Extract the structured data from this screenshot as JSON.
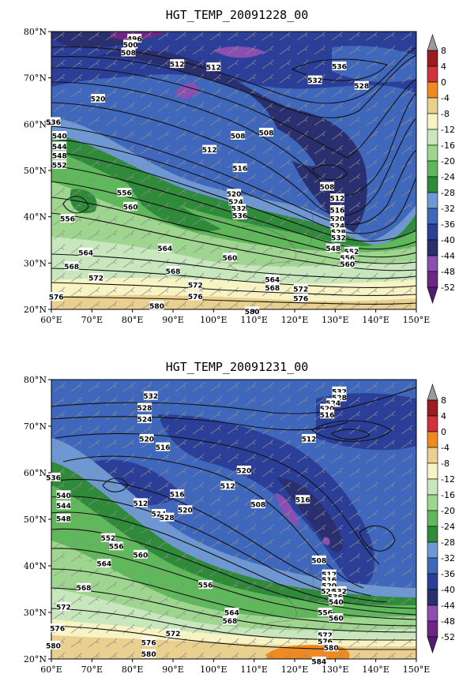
{
  "maps": [
    {
      "title": "HGT_TEMP_20091228_00",
      "contour_labels": [
        {
          "v": "496",
          "lon": 80.5,
          "lat": 78.5
        },
        {
          "v": "500",
          "lon": 79.5,
          "lat": 77.2
        },
        {
          "v": "508",
          "lon": 79,
          "lat": 75.5
        },
        {
          "v": "512",
          "lon": 91,
          "lat": 73
        },
        {
          "v": "512",
          "lon": 100,
          "lat": 72.3
        },
        {
          "v": "520",
          "lon": 71.5,
          "lat": 65.5
        },
        {
          "v": "536",
          "lon": 131,
          "lat": 72.5
        },
        {
          "v": "532",
          "lon": 125,
          "lat": 69.5
        },
        {
          "v": "528",
          "lon": 136.5,
          "lat": 68.3
        },
        {
          "v": "536",
          "lon": 60.5,
          "lat": 60.5
        },
        {
          "v": "540",
          "lon": 62,
          "lat": 57.5
        },
        {
          "v": "544",
          "lon": 62,
          "lat": 55.2
        },
        {
          "v": "548",
          "lon": 62,
          "lat": 53.2
        },
        {
          "v": "552",
          "lon": 62,
          "lat": 51.2
        },
        {
          "v": "508",
          "lon": 106,
          "lat": 57.5
        },
        {
          "v": "508",
          "lon": 113,
          "lat": 58.2
        },
        {
          "v": "512",
          "lon": 99,
          "lat": 54.5
        },
        {
          "v": "516",
          "lon": 106.5,
          "lat": 50.5
        },
        {
          "v": "508",
          "lon": 128,
          "lat": 46.5
        },
        {
          "v": "520",
          "lon": 105,
          "lat": 45
        },
        {
          "v": "524",
          "lon": 105.5,
          "lat": 43.3
        },
        {
          "v": "532",
          "lon": 106.2,
          "lat": 41.8
        },
        {
          "v": "536",
          "lon": 106.5,
          "lat": 40.3
        },
        {
          "v": "556",
          "lon": 78,
          "lat": 45.2
        },
        {
          "v": "560",
          "lon": 79.5,
          "lat": 42.2
        },
        {
          "v": "556",
          "lon": 64,
          "lat": 39.6
        },
        {
          "v": "512",
          "lon": 130.5,
          "lat": 44
        },
        {
          "v": "516",
          "lon": 130.5,
          "lat": 41.5
        },
        {
          "v": "520",
          "lon": 130.5,
          "lat": 39.6
        },
        {
          "v": "524",
          "lon": 130.5,
          "lat": 38.1
        },
        {
          "v": "528",
          "lon": 130.8,
          "lat": 36.7
        },
        {
          "v": "532",
          "lon": 130.8,
          "lat": 35.5
        },
        {
          "v": "548",
          "lon": 129.5,
          "lat": 33.2
        },
        {
          "v": "552",
          "lon": 134,
          "lat": 32.5
        },
        {
          "v": "556",
          "lon": 133,
          "lat": 31.2
        },
        {
          "v": "560",
          "lon": 133,
          "lat": 29.8
        },
        {
          "v": "564",
          "lon": 68.5,
          "lat": 32.3
        },
        {
          "v": "564",
          "lon": 88,
          "lat": 33.2
        },
        {
          "v": "560",
          "lon": 104,
          "lat": 31.2
        },
        {
          "v": "568",
          "lon": 65,
          "lat": 29.3
        },
        {
          "v": "568",
          "lon": 90,
          "lat": 28.3
        },
        {
          "v": "572",
          "lon": 71,
          "lat": 26.8
        },
        {
          "v": "572",
          "lon": 95.5,
          "lat": 25.3
        },
        {
          "v": "564",
          "lon": 114.5,
          "lat": 26.5
        },
        {
          "v": "568",
          "lon": 114.5,
          "lat": 24.7
        },
        {
          "v": "572",
          "lon": 121.5,
          "lat": 24.4
        },
        {
          "v": "576",
          "lon": 121.5,
          "lat": 22.4
        },
        {
          "v": "576",
          "lon": 61.2,
          "lat": 22.7
        },
        {
          "v": "576",
          "lon": 95.5,
          "lat": 22.8
        },
        {
          "v": "580",
          "lon": 86,
          "lat": 20.8
        },
        {
          "v": "580",
          "lon": 109.5,
          "lat": 19.6
        }
      ]
    },
    {
      "title": "HGT_TEMP_20091231_00",
      "contour_labels": [
        {
          "v": "532",
          "lon": 131,
          "lat": 77.5
        },
        {
          "v": "528",
          "lon": 131,
          "lat": 76.2
        },
        {
          "v": "524",
          "lon": 129.5,
          "lat": 75
        },
        {
          "v": "520",
          "lon": 128,
          "lat": 73.8
        },
        {
          "v": "516",
          "lon": 128,
          "lat": 72.5
        },
        {
          "v": "532",
          "lon": 84.5,
          "lat": 76.5
        },
        {
          "v": "528",
          "lon": 83,
          "lat": 74
        },
        {
          "v": "524",
          "lon": 83,
          "lat": 71.5
        },
        {
          "v": "520",
          "lon": 83.5,
          "lat": 67.3
        },
        {
          "v": "516",
          "lon": 87.5,
          "lat": 65.5
        },
        {
          "v": "512",
          "lon": 123.5,
          "lat": 67.3
        },
        {
          "v": "536",
          "lon": 60.5,
          "lat": 59
        },
        {
          "v": "540",
          "lon": 63,
          "lat": 55.2
        },
        {
          "v": "544",
          "lon": 63,
          "lat": 53
        },
        {
          "v": "548",
          "lon": 63,
          "lat": 50.2
        },
        {
          "v": "520",
          "lon": 107.5,
          "lat": 60.5
        },
        {
          "v": "512",
          "lon": 103.5,
          "lat": 57.2
        },
        {
          "v": "508",
          "lon": 111,
          "lat": 53.2
        },
        {
          "v": "516",
          "lon": 122,
          "lat": 54.2
        },
        {
          "v": "512",
          "lon": 82,
          "lat": 53.5
        },
        {
          "v": "516",
          "lon": 91,
          "lat": 55.4
        },
        {
          "v": "520",
          "lon": 93,
          "lat": 52
        },
        {
          "v": "524",
          "lon": 86.5,
          "lat": 51.2
        },
        {
          "v": "528",
          "lon": 88.5,
          "lat": 50.4
        },
        {
          "v": "552",
          "lon": 74,
          "lat": 46
        },
        {
          "v": "556",
          "lon": 76,
          "lat": 44.2
        },
        {
          "v": "560",
          "lon": 82,
          "lat": 42.4
        },
        {
          "v": "564",
          "lon": 73,
          "lat": 40.5
        },
        {
          "v": "556",
          "lon": 98,
          "lat": 35.9
        },
        {
          "v": "568",
          "lon": 68,
          "lat": 35.3
        },
        {
          "v": "572",
          "lon": 63,
          "lat": 31.2
        },
        {
          "v": "508",
          "lon": 126,
          "lat": 41.2
        },
        {
          "v": "512",
          "lon": 128.5,
          "lat": 38.2
        },
        {
          "v": "516",
          "lon": 128.5,
          "lat": 37
        },
        {
          "v": "520",
          "lon": 128.5,
          "lat": 35.8
        },
        {
          "v": "528",
          "lon": 128.3,
          "lat": 34.6
        },
        {
          "v": "532",
          "lon": 131,
          "lat": 34.6
        },
        {
          "v": "536",
          "lon": 130,
          "lat": 33.4
        },
        {
          "v": "540",
          "lon": 130.2,
          "lat": 32.3
        },
        {
          "v": "556",
          "lon": 127.5,
          "lat": 30
        },
        {
          "v": "560",
          "lon": 130.2,
          "lat": 28.8
        },
        {
          "v": "564",
          "lon": 104.5,
          "lat": 30
        },
        {
          "v": "568",
          "lon": 104,
          "lat": 28.2
        },
        {
          "v": "572",
          "lon": 90,
          "lat": 25.5
        },
        {
          "v": "576",
          "lon": 61.5,
          "lat": 26.6
        },
        {
          "v": "576",
          "lon": 84,
          "lat": 23.6
        },
        {
          "v": "572",
          "lon": 127.5,
          "lat": 25.2
        },
        {
          "v": "576",
          "lon": 127.5,
          "lat": 23.8
        },
        {
          "v": "580",
          "lon": 129,
          "lat": 22.5
        },
        {
          "v": "580",
          "lon": 60.5,
          "lat": 22.9
        },
        {
          "v": "580",
          "lon": 84,
          "lat": 21.1
        },
        {
          "v": "584",
          "lon": 126,
          "lat": 19.5
        }
      ]
    }
  ],
  "axes": {
    "lon_ticks": [
      "60°E",
      "70°E",
      "80°E",
      "90°E",
      "100°E",
      "110°E",
      "120°E",
      "130°E",
      "140°E",
      "150°E"
    ],
    "lat_ticks": [
      "20°N",
      "30°N",
      "40°N",
      "50°N",
      "60°N",
      "70°N",
      "80°N"
    ],
    "lon_range": [
      60,
      150
    ],
    "lat_range": [
      20,
      80
    ]
  },
  "colorbar": {
    "labels": [
      "8",
      "4",
      "0",
      "-4",
      "-8",
      "-12",
      "-16",
      "-20",
      "-24",
      "-28",
      "-32",
      "-36",
      "-40",
      "-44",
      "-48",
      "-52"
    ],
    "colors": [
      "#9a9a9a",
      "#9c1c22",
      "#d1323b",
      "#ee8a1f",
      "#ead08e",
      "#f7f3c2",
      "#c8e7bd",
      "#9fd68f",
      "#5fb85a",
      "#2f8a3a",
      "#6e98d3",
      "#3f68bc",
      "#2b3f99",
      "#292f6f",
      "#8b4fb1",
      "#6a2783",
      "#4f1f6b"
    ]
  }
}
